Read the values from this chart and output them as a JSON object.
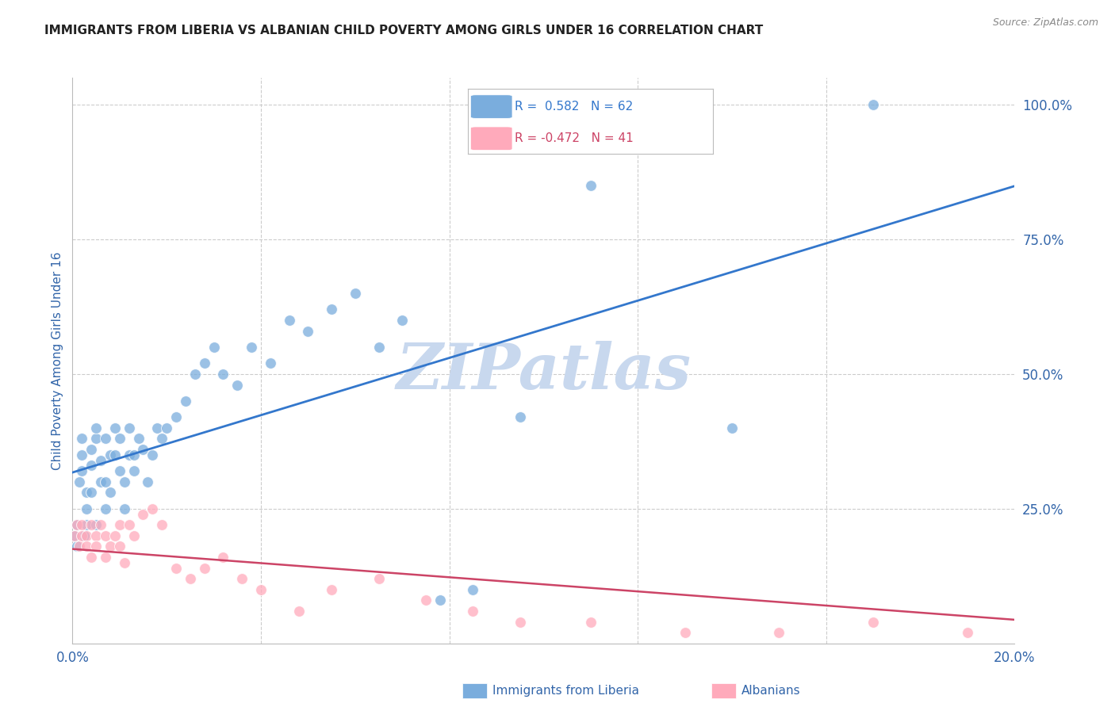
{
  "title": "IMMIGRANTS FROM LIBERIA VS ALBANIAN CHILD POVERTY AMONG GIRLS UNDER 16 CORRELATION CHART",
  "source": "Source: ZipAtlas.com",
  "ylabel": "Child Poverty Among Girls Under 16",
  "xlim": [
    0.0,
    0.2
  ],
  "ylim": [
    0.0,
    1.05
  ],
  "right_yticks": [
    0.0,
    0.25,
    0.5,
    0.75,
    1.0
  ],
  "right_yticklabels": [
    "",
    "25.0%",
    "50.0%",
    "75.0%",
    "100.0%"
  ],
  "liberia_R": 0.582,
  "liberia_N": 62,
  "albanian_R": -0.472,
  "albanian_N": 41,
  "liberia_color": "#7aaddd",
  "albanian_color": "#ffaabb",
  "liberia_line_color": "#3377cc",
  "albanian_line_color": "#cc4466",
  "watermark": "ZIPatlas",
  "watermark_color": "#c8d8ee",
  "background_color": "#ffffff",
  "grid_color": "#cccccc",
  "title_color": "#222222",
  "axis_label_color": "#3366aa",
  "tick_label_color": "#3366aa",
  "liberia_scatter_x": [
    0.0005,
    0.001,
    0.001,
    0.0015,
    0.002,
    0.002,
    0.002,
    0.0025,
    0.003,
    0.003,
    0.003,
    0.004,
    0.004,
    0.004,
    0.005,
    0.005,
    0.005,
    0.006,
    0.006,
    0.007,
    0.007,
    0.007,
    0.008,
    0.008,
    0.009,
    0.009,
    0.01,
    0.01,
    0.011,
    0.011,
    0.012,
    0.012,
    0.013,
    0.013,
    0.014,
    0.015,
    0.016,
    0.017,
    0.018,
    0.019,
    0.02,
    0.022,
    0.024,
    0.026,
    0.028,
    0.03,
    0.032,
    0.035,
    0.038,
    0.042,
    0.046,
    0.05,
    0.055,
    0.06,
    0.065,
    0.07,
    0.078,
    0.085,
    0.095,
    0.11,
    0.14,
    0.17
  ],
  "liberia_scatter_y": [
    0.2,
    0.18,
    0.22,
    0.3,
    0.32,
    0.35,
    0.38,
    0.2,
    0.25,
    0.28,
    0.22,
    0.33,
    0.36,
    0.28,
    0.38,
    0.4,
    0.22,
    0.34,
    0.3,
    0.38,
    0.3,
    0.25,
    0.35,
    0.28,
    0.4,
    0.35,
    0.32,
    0.38,
    0.25,
    0.3,
    0.35,
    0.4,
    0.32,
    0.35,
    0.38,
    0.36,
    0.3,
    0.35,
    0.4,
    0.38,
    0.4,
    0.42,
    0.45,
    0.5,
    0.52,
    0.55,
    0.5,
    0.48,
    0.55,
    0.52,
    0.6,
    0.58,
    0.62,
    0.65,
    0.55,
    0.6,
    0.08,
    0.1,
    0.42,
    0.85,
    0.4,
    1.0
  ],
  "albanian_scatter_x": [
    0.0005,
    0.001,
    0.0015,
    0.002,
    0.002,
    0.003,
    0.003,
    0.004,
    0.004,
    0.005,
    0.005,
    0.006,
    0.007,
    0.007,
    0.008,
    0.009,
    0.01,
    0.01,
    0.011,
    0.012,
    0.013,
    0.015,
    0.017,
    0.019,
    0.022,
    0.025,
    0.028,
    0.032,
    0.036,
    0.04,
    0.048,
    0.055,
    0.065,
    0.075,
    0.085,
    0.095,
    0.11,
    0.13,
    0.15,
    0.17,
    0.19
  ],
  "albanian_scatter_y": [
    0.2,
    0.22,
    0.18,
    0.22,
    0.2,
    0.2,
    0.18,
    0.22,
    0.16,
    0.2,
    0.18,
    0.22,
    0.2,
    0.16,
    0.18,
    0.2,
    0.22,
    0.18,
    0.15,
    0.22,
    0.2,
    0.24,
    0.25,
    0.22,
    0.14,
    0.12,
    0.14,
    0.16,
    0.12,
    0.1,
    0.06,
    0.1,
    0.12,
    0.08,
    0.06,
    0.04,
    0.04,
    0.02,
    0.02,
    0.04,
    0.02
  ]
}
